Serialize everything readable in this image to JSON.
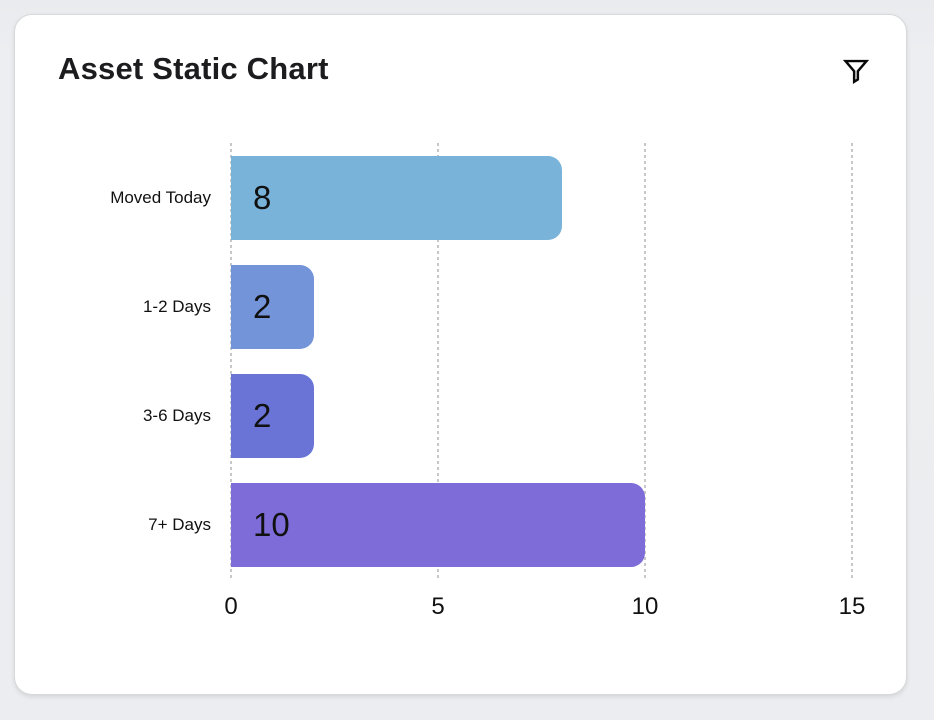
{
  "card": {
    "title": "Asset Static Chart",
    "filter_icon": "funnel-icon"
  },
  "chart_data": {
    "type": "bar",
    "orientation": "horizontal",
    "title": "Asset Static Chart",
    "categories": [
      "Moved Today",
      "1-2 Days",
      "3-6 Days",
      "7+ Days"
    ],
    "values": [
      8,
      2,
      2,
      10
    ],
    "bar_colors": [
      "#7ab3d9",
      "#7494da",
      "#6974d6",
      "#7e6cd8"
    ],
    "x_ticks": [
      0,
      5,
      10,
      15
    ],
    "xlim": [
      0,
      15
    ],
    "xlabel": "",
    "ylabel": "",
    "grid": "vertical-dotted",
    "legend": "none",
    "value_labels": "inside-left"
  },
  "colors": {
    "page_bg": "#ecedf0",
    "card_bg": "#ffffff",
    "grid": "#c7c8ca",
    "text": "#111111",
    "title_text": "#1c1c1e",
    "icon_stroke": "#0a0a0a"
  }
}
